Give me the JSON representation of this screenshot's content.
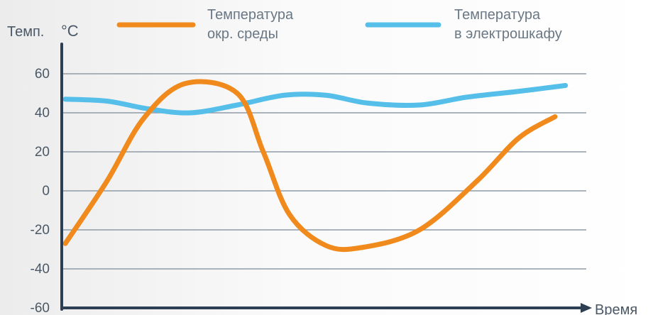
{
  "chart_data": {
    "type": "line",
    "ylabel_prefix": "Темп.",
    "ylabel_unit": "°C",
    "xlabel": "Время",
    "ylim": [
      -60,
      60
    ],
    "yticks": [
      60,
      40,
      20,
      0,
      -20,
      -40,
      -60
    ],
    "grid": true,
    "legend_position": "top",
    "series": [
      {
        "name_lines": [
          "Температура",
          "окр. среды"
        ],
        "color": "#f08a1c",
        "points": [
          [
            0.0,
            -27
          ],
          [
            0.08,
            5
          ],
          [
            0.15,
            37
          ],
          [
            0.23,
            55
          ],
          [
            0.33,
            50
          ],
          [
            0.38,
            20
          ],
          [
            0.43,
            -12
          ],
          [
            0.5,
            -28
          ],
          [
            0.57,
            -29
          ],
          [
            0.68,
            -20
          ],
          [
            0.79,
            5
          ],
          [
            0.87,
            27
          ],
          [
            0.94,
            38
          ]
        ]
      },
      {
        "name_lines": [
          "Температура",
          "в электрошкафу"
        ],
        "color": "#55bfea",
        "points": [
          [
            0.0,
            47
          ],
          [
            0.08,
            46
          ],
          [
            0.16,
            42
          ],
          [
            0.24,
            40
          ],
          [
            0.33,
            44
          ],
          [
            0.42,
            49
          ],
          [
            0.5,
            49
          ],
          [
            0.58,
            45
          ],
          [
            0.68,
            44
          ],
          [
            0.77,
            48
          ],
          [
            0.87,
            51
          ],
          [
            0.96,
            54
          ]
        ]
      }
    ]
  }
}
